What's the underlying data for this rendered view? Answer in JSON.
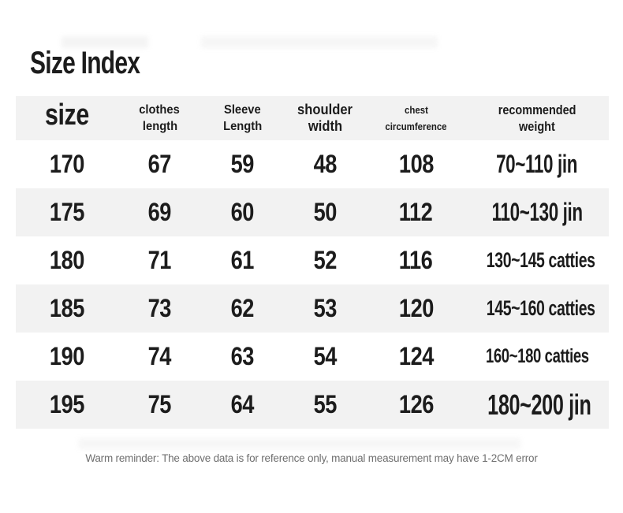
{
  "page": {
    "title": "Size Index",
    "footer_note": "Warm reminder: The above data is for reference only, manual measurement may have 1-2CM error"
  },
  "colors": {
    "row_alt_bg": "#f2f2f2",
    "text": "#1c1c1c",
    "footer_text": "#6f6f6f"
  },
  "chart_data": {
    "type": "table",
    "title": "Size Index",
    "columns": [
      "size",
      "clothes length",
      "Sleeve Length",
      "shoulder width",
      "chest circumference",
      "recommended weight"
    ],
    "columns_lines": [
      [
        "size",
        ""
      ],
      [
        "clothes",
        "length"
      ],
      [
        "Sleeve",
        "Length"
      ],
      [
        "shoulder",
        "width"
      ],
      [
        "chest",
        "circumference"
      ],
      [
        "recommended",
        "weight"
      ]
    ],
    "rows": [
      [
        "170",
        "67",
        "59",
        "48",
        "108",
        "70~110 jin"
      ],
      [
        "175",
        "69",
        "60",
        "50",
        "112",
        "110~130 jin"
      ],
      [
        "180",
        "71",
        "61",
        "52",
        "116",
        "130~145 catties"
      ],
      [
        "185",
        "73",
        "62",
        "53",
        "120",
        "145~160 catties"
      ],
      [
        "190",
        "74",
        "63",
        "54",
        "124",
        "160~180 catties"
      ],
      [
        "195",
        "75",
        "64",
        "55",
        "126",
        "180~200 jin"
      ]
    ],
    "note": "Warm reminder: The above data is for reference only, manual measurement may have 1-2CM error",
    "layout": {
      "grid": false,
      "alternating_rows": true,
      "header_position": "top"
    }
  }
}
